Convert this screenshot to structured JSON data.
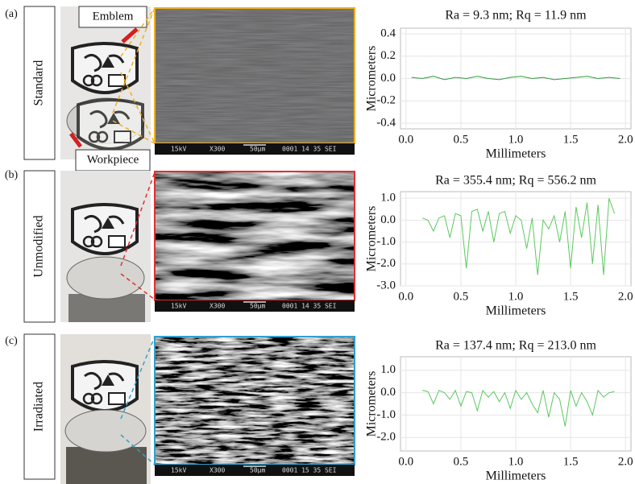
{
  "panels": [
    {
      "label": "(a)",
      "name": "Standard",
      "sem_caption": [
        "15kV",
        "X300",
        "50µm",
        "0001 14 35 SEI"
      ]
    },
    {
      "label": "(b)",
      "name": "Unmodified",
      "sem_caption": [
        "15kV",
        "X300",
        "50µm",
        "0001 14 35 SEI"
      ]
    },
    {
      "label": "(c)",
      "name": "Irradiated",
      "sem_caption": [
        "15kV",
        "X300",
        "50µm",
        "0001 15 35 SEI"
      ]
    }
  ],
  "callouts": [
    "Emblem",
    "Workpiece"
  ],
  "chart_data": [
    {
      "type": "line",
      "title": "Ra = 9.3 nm; Rq = 11.9 nm",
      "xlabel": "Millimeters",
      "ylabel": "Micrometers",
      "color": "#2e9e3e",
      "grid": true,
      "x": [
        0.05,
        0.15,
        0.25,
        0.35,
        0.45,
        0.55,
        0.65,
        0.75,
        0.85,
        0.95,
        1.05,
        1.15,
        1.25,
        1.35,
        1.45,
        1.55,
        1.65,
        1.75,
        1.85,
        1.95
      ],
      "values": [
        0.01,
        0.0,
        0.02,
        -0.01,
        0.01,
        0.0,
        0.02,
        0.0,
        -0.01,
        0.01,
        0.02,
        0.0,
        0.01,
        -0.01,
        0.0,
        0.01,
        0.02,
        0.0,
        0.01,
        0.0
      ],
      "xlim": [
        -0.05,
        2.05
      ],
      "ylim": [
        -0.45,
        0.45
      ],
      "xticks": [
        {
          "value": 0,
          "label": "0.0"
        },
        0.5,
        {
          "value": 1,
          "label": "1.0"
        },
        1.5,
        {
          "value": 2,
          "label": "2.0"
        }
      ],
      "yticks": [
        0.4,
        0.2,
        {
          "value": 0,
          "label": "0.0"
        },
        -0.2,
        -0.4
      ]
    },
    {
      "type": "line",
      "title": "Ra = 355.4 nm; Rq = 556.2 nm",
      "xlabel": "Millimeters",
      "ylabel": "Micrometers",
      "color": "#5cc860",
      "grid": true,
      "x": [
        0.15,
        0.2,
        0.25,
        0.3,
        0.35,
        0.4,
        0.45,
        0.5,
        0.55,
        0.6,
        0.65,
        0.7,
        0.75,
        0.8,
        0.85,
        0.9,
        0.95,
        1.0,
        1.05,
        1.1,
        1.15,
        1.2,
        1.25,
        1.3,
        1.35,
        1.4,
        1.45,
        1.5,
        1.55,
        1.6,
        1.65,
        1.7,
        1.75,
        1.8,
        1.85,
        1.9
      ],
      "values": [
        0.1,
        0.0,
        -0.5,
        0.1,
        0.2,
        -0.8,
        0.3,
        0.2,
        -2.2,
        0.4,
        0.5,
        -0.5,
        0.4,
        -1.0,
        0.3,
        0.4,
        -0.6,
        0.2,
        0.0,
        -1.3,
        0.1,
        -2.5,
        0.0,
        -0.4,
        0.2,
        -1.0,
        0.4,
        -2.2,
        0.6,
        -0.8,
        0.8,
        -2.0,
        0.7,
        -2.5,
        1.0,
        0.3
      ],
      "xlim": [
        -0.05,
        2.05
      ],
      "ylim": [
        -3.0,
        1.3
      ],
      "xticks": [
        {
          "value": 0,
          "label": "0.0"
        },
        0.5,
        {
          "value": 1,
          "label": "1.0"
        },
        1.5,
        {
          "value": 2,
          "label": "2.0"
        }
      ],
      "yticks": [
        {
          "value": 1,
          "label": "1.0"
        },
        {
          "value": 0,
          "label": "0.0"
        },
        {
          "value": -1,
          "label": "-1.0"
        },
        {
          "value": -2,
          "label": "-2.0"
        },
        {
          "value": -3,
          "label": "-3.0"
        }
      ]
    },
    {
      "type": "line",
      "title": "Ra = 137.4 nm; Rq = 213.0 nm",
      "xlabel": "Millimeters",
      "ylabel": "Micrometers",
      "color": "#5cc860",
      "grid": true,
      "x": [
        0.15,
        0.2,
        0.25,
        0.3,
        0.35,
        0.4,
        0.45,
        0.5,
        0.55,
        0.6,
        0.65,
        0.7,
        0.75,
        0.8,
        0.85,
        0.9,
        0.95,
        1.0,
        1.05,
        1.1,
        1.15,
        1.2,
        1.25,
        1.3,
        1.35,
        1.4,
        1.45,
        1.5,
        1.55,
        1.6,
        1.65,
        1.7,
        1.75,
        1.8,
        1.85,
        1.9
      ],
      "values": [
        0.1,
        0.05,
        -0.5,
        0.1,
        0.0,
        -0.3,
        0.1,
        -0.6,
        0.05,
        0.0,
        -0.8,
        0.1,
        -0.2,
        0.05,
        -0.4,
        0.0,
        -0.7,
        0.1,
        -0.3,
        0.0,
        -0.5,
        -0.9,
        0.1,
        -1.1,
        0.0,
        -0.3,
        -1.5,
        0.1,
        -0.6,
        0.0,
        -0.4,
        -1.0,
        0.1,
        -0.2,
        0.0,
        0.05
      ],
      "xlim": [
        -0.05,
        2.05
      ],
      "ylim": [
        -2.6,
        1.6
      ],
      "xticks": [
        {
          "value": 0,
          "label": "0.0"
        },
        0.5,
        {
          "value": 1,
          "label": "1.0"
        },
        1.5,
        {
          "value": 2,
          "label": "2.0"
        }
      ],
      "yticks": [
        {
          "value": 1,
          "label": "1.0"
        },
        {
          "value": 0,
          "label": "0.0"
        },
        {
          "value": -1,
          "label": "-1.0"
        },
        {
          "value": -2,
          "label": "-2.0"
        }
      ]
    }
  ]
}
